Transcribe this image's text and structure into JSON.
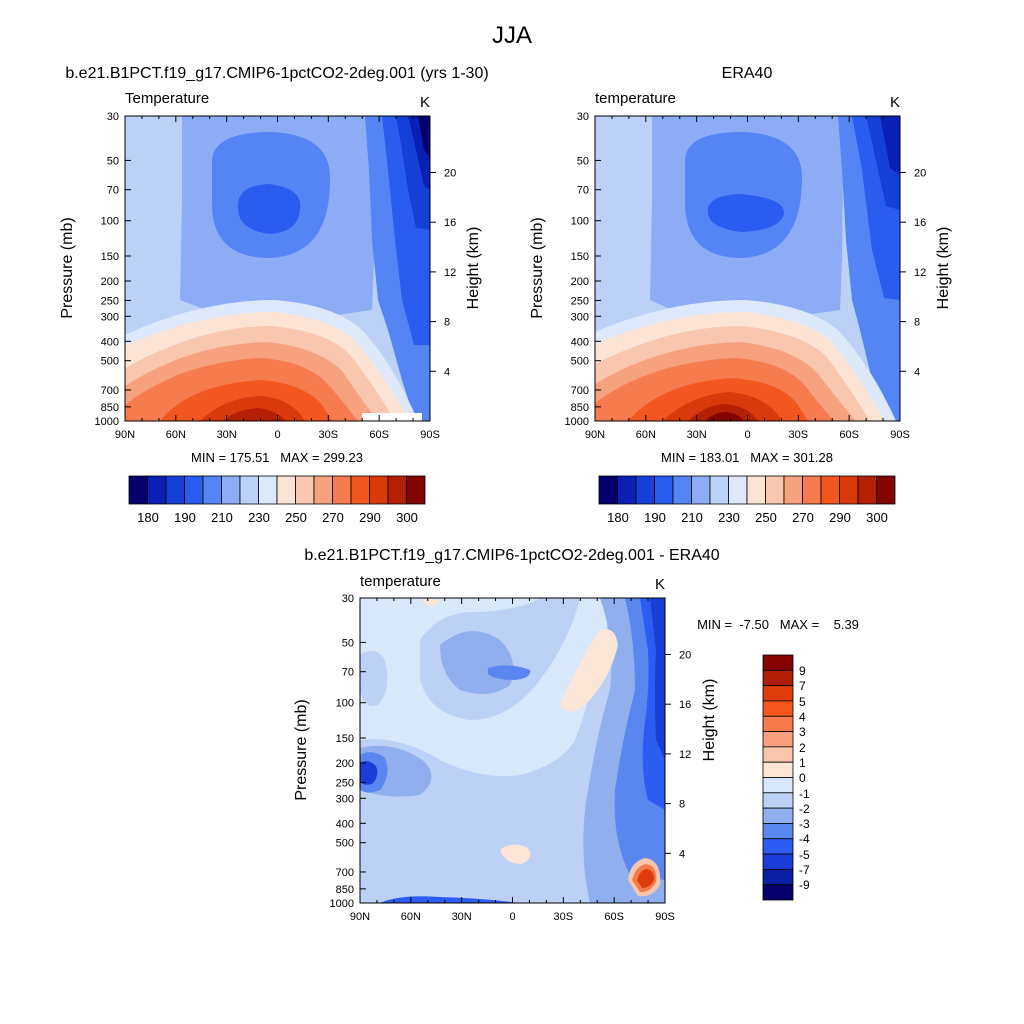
{
  "figure": {
    "title": "JJA"
  },
  "chart_data": [
    {
      "type": "heatmap",
      "panel": "model",
      "title": "b.e21.B1PCT.f19_g17.CMIP6-1pctCO2-2deg.001 (yrs 1-30)",
      "left_label": "Temperature",
      "units": "K",
      "ylabel": "Pressure (mb)",
      "ylabel_right": "Height (km)",
      "x_ticks": [
        "90N",
        "60N",
        "30N",
        "0",
        "30S",
        "60S",
        "90S"
      ],
      "pressure_ticks": [
        "30",
        "50",
        "70",
        "100",
        "150",
        "200",
        "250",
        "300",
        "400",
        "500",
        "700",
        "850",
        "1000"
      ],
      "height_ticks": [
        "20",
        "16",
        "12",
        "8",
        "4"
      ],
      "stats": "MIN = 175.51   MAX = 299.23",
      "colorbar_labels": [
        "180",
        "190",
        "210",
        "230",
        "250",
        "270",
        "290",
        "300"
      ]
    },
    {
      "type": "heatmap",
      "panel": "obs",
      "title": "ERA40",
      "left_label": "temperature",
      "units": "K",
      "ylabel": "Pressure (mb)",
      "ylabel_right": "Height (km)",
      "x_ticks": [
        "90N",
        "60N",
        "30N",
        "0",
        "30S",
        "60S",
        "90S"
      ],
      "pressure_ticks": [
        "30",
        "50",
        "70",
        "100",
        "150",
        "200",
        "250",
        "300",
        "400",
        "500",
        "700",
        "850",
        "1000"
      ],
      "height_ticks": [
        "20",
        "16",
        "12",
        "8",
        "4"
      ],
      "stats": "MIN = 183.01   MAX = 301.28",
      "colorbar_labels": [
        "180",
        "190",
        "210",
        "230",
        "250",
        "270",
        "290",
        "300"
      ]
    },
    {
      "type": "heatmap",
      "panel": "diff",
      "title": "b.e21.B1PCT.f19_g17.CMIP6-1pctCO2-2deg.001 - ERA40",
      "left_label": "temperature",
      "units": "K",
      "ylabel": "Pressure (mb)",
      "ylabel_right": "Height (km)",
      "x_ticks": [
        "90N",
        "60N",
        "30N",
        "0",
        "30S",
        "60S",
        "90S"
      ],
      "pressure_ticks": [
        "30",
        "50",
        "70",
        "100",
        "150",
        "200",
        "250",
        "300",
        "400",
        "500",
        "700",
        "850",
        "1000"
      ],
      "height_ticks": [
        "20",
        "16",
        "12",
        "8",
        "4"
      ],
      "stats": "MIN =  -7.50   MAX =    5.39",
      "colorbar_labels": [
        "9",
        "7",
        "5",
        "4",
        "3",
        "2",
        "1",
        "0",
        "-1",
        "-2",
        "-3",
        "-4",
        "-5",
        "-7",
        "-9"
      ]
    }
  ],
  "colors": {
    "temperature_scale": [
      "#04006e",
      "#0a1fb4",
      "#1540d8",
      "#2a5cf0",
      "#5585f5",
      "#8cadf5",
      "#bcd1f8",
      "#dde8fb",
      "#fbe4d6",
      "#f9c6ae",
      "#f7a27e",
      "#f67c50",
      "#f2571f",
      "#d83a0c",
      "#b32004",
      "#840400"
    ],
    "difference_scale": [
      "#850400",
      "#b01e05",
      "#dd3c0c",
      "#f5581d",
      "#f77a4c",
      "#f8a07d",
      "#f9c6ad",
      "#fbe5d7",
      "#d9e7fb",
      "#bdd1f7",
      "#8fafef",
      "#5a86f0",
      "#2c5cf1",
      "#1a3dd8",
      "#0b1fa4",
      "#05006c"
    ],
    "axis": "#000000"
  }
}
